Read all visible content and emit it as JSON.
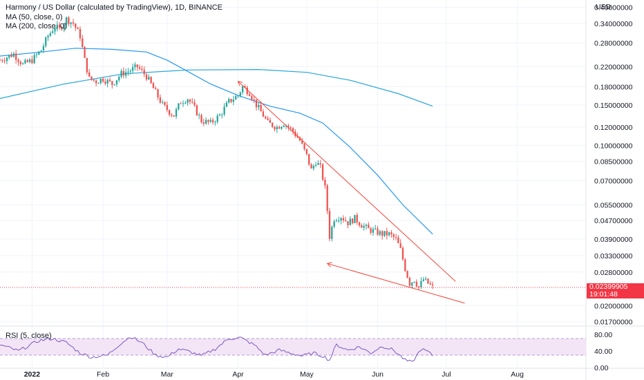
{
  "legend": {
    "title": "Harmony / US Dollar (calculated by TradingView), 1D, BINANCE",
    "ma50": "MA (50, close, 0)",
    "ma200": "MA (200, close, 0)",
    "rsi": "RSI (5, close)"
  },
  "price_label": {
    "value": "0.02399905",
    "time": "19:01:48"
  },
  "colors": {
    "up": "#26a69a",
    "down": "#ef5350",
    "ma50": "#2196f3",
    "ma200": "#26a5d9",
    "rsi_line": "#7e57c2",
    "rsi_band": "#f3e5f5",
    "trend": "#f44336",
    "price_line": "#f23645"
  },
  "chart_data": {
    "type": "candlestick",
    "title": "Harmony / US Dollar (calculated by TradingView), 1D, BINANCE",
    "y_unit": "USD",
    "y_scale": "log",
    "y_ticks": [
      0.4,
      0.34,
      0.28,
      0.22,
      0.18,
      0.15,
      0.12,
      0.1,
      0.085,
      0.07,
      0.055,
      0.047,
      0.039,
      0.033,
      0.028,
      0.02,
      0.017
    ],
    "x_range": [
      "2021-12-18",
      "2022-08-31"
    ],
    "x_ticks": [
      {
        "label": "2022",
        "date": "2022-01-01"
      },
      {
        "label": "Feb",
        "date": "2022-02-01"
      },
      {
        "label": "Mar",
        "date": "2022-03-01"
      },
      {
        "label": "Apr",
        "date": "2022-04-01"
      },
      {
        "label": "May",
        "date": "2022-05-01"
      },
      {
        "label": "Jun",
        "date": "2022-06-01"
      },
      {
        "label": "Jul",
        "date": "2022-07-01"
      },
      {
        "label": "Aug",
        "date": "2022-08-01"
      }
    ],
    "last_price": 0.02399905,
    "close_path": [
      [
        "2021-12-18",
        0.235
      ],
      [
        "2021-12-24",
        0.25
      ],
      [
        "2021-12-28",
        0.225
      ],
      [
        "2022-01-01",
        0.235
      ],
      [
        "2022-01-05",
        0.26
      ],
      [
        "2022-01-08",
        0.3
      ],
      [
        "2022-01-11",
        0.33
      ],
      [
        "2022-01-13",
        0.32
      ],
      [
        "2022-01-16",
        0.355
      ],
      [
        "2022-01-19",
        0.34
      ],
      [
        "2022-01-22",
        0.3
      ],
      [
        "2022-01-24",
        0.235
      ],
      [
        "2022-01-26",
        0.195
      ],
      [
        "2022-01-29",
        0.19
      ],
      [
        "2022-02-01",
        0.195
      ],
      [
        "2022-02-05",
        0.185
      ],
      [
        "2022-02-09",
        0.205
      ],
      [
        "2022-02-12",
        0.21
      ],
      [
        "2022-02-16",
        0.22
      ],
      [
        "2022-02-20",
        0.2
      ],
      [
        "2022-02-24",
        0.17
      ],
      [
        "2022-02-27",
        0.15
      ],
      [
        "2022-03-02",
        0.14
      ],
      [
        "2022-03-04",
        0.135
      ],
      [
        "2022-03-07",
        0.155
      ],
      [
        "2022-03-10",
        0.16
      ],
      [
        "2022-03-13",
        0.145
      ],
      [
        "2022-03-16",
        0.128
      ],
      [
        "2022-03-20",
        0.125
      ],
      [
        "2022-03-24",
        0.135
      ],
      [
        "2022-03-28",
        0.155
      ],
      [
        "2022-04-01",
        0.165
      ],
      [
        "2022-04-03",
        0.18
      ],
      [
        "2022-04-06",
        0.17
      ],
      [
        "2022-04-09",
        0.15
      ],
      [
        "2022-04-12",
        0.135
      ],
      [
        "2022-04-14",
        0.125
      ],
      [
        "2022-04-18",
        0.12
      ],
      [
        "2022-04-21",
        0.125
      ],
      [
        "2022-04-23",
        0.12
      ],
      [
        "2022-04-25",
        0.115
      ],
      [
        "2022-04-28",
        0.105
      ],
      [
        "2022-05-01",
        0.09
      ],
      [
        "2022-05-03",
        0.078
      ],
      [
        "2022-05-05",
        0.085
      ],
      [
        "2022-05-07",
        0.08
      ],
      [
        "2022-05-09",
        0.065
      ],
      [
        "2022-05-10",
        0.052
      ],
      [
        "2022-05-11",
        0.04
      ],
      [
        "2022-05-13",
        0.048
      ],
      [
        "2022-05-16",
        0.049
      ],
      [
        "2022-05-19",
        0.046
      ],
      [
        "2022-05-22",
        0.048
      ],
      [
        "2022-05-25",
        0.045
      ],
      [
        "2022-05-28",
        0.043
      ],
      [
        "2022-05-31",
        0.042
      ],
      [
        "2022-06-03",
        0.041
      ],
      [
        "2022-06-06",
        0.041
      ],
      [
        "2022-06-09",
        0.039
      ],
      [
        "2022-06-11",
        0.035
      ],
      [
        "2022-06-13",
        0.029
      ],
      [
        "2022-06-15",
        0.025
      ],
      [
        "2022-06-17",
        0.026
      ],
      [
        "2022-06-19",
        0.024
      ],
      [
        "2022-06-21",
        0.026
      ],
      [
        "2022-06-23",
        0.025
      ],
      [
        "2022-06-25",
        0.024
      ]
    ],
    "series": [
      {
        "name": "MA (50, close, 0)",
        "points": [
          [
            "2021-12-18",
            0.245
          ],
          [
            "2022-01-05",
            0.255
          ],
          [
            "2022-01-20",
            0.265
          ],
          [
            "2022-02-05",
            0.262
          ],
          [
            "2022-02-20",
            0.255
          ],
          [
            "2022-03-01",
            0.235
          ],
          [
            "2022-03-10",
            0.21
          ],
          [
            "2022-03-20",
            0.185
          ],
          [
            "2022-04-01",
            0.165
          ],
          [
            "2022-04-15",
            0.148
          ],
          [
            "2022-04-28",
            0.138
          ],
          [
            "2022-05-08",
            0.125
          ],
          [
            "2022-05-20",
            0.098
          ],
          [
            "2022-06-01",
            0.074
          ],
          [
            "2022-06-12",
            0.055
          ],
          [
            "2022-06-25",
            0.041
          ]
        ]
      },
      {
        "name": "MA (200, close, 0)",
        "points": [
          [
            "2021-12-18",
            0.16
          ],
          [
            "2022-01-15",
            0.185
          ],
          [
            "2022-02-10",
            0.205
          ],
          [
            "2022-03-10",
            0.213
          ],
          [
            "2022-04-10",
            0.214
          ],
          [
            "2022-05-01",
            0.208
          ],
          [
            "2022-05-20",
            0.192
          ],
          [
            "2022-06-10",
            0.168
          ],
          [
            "2022-06-25",
            0.148
          ]
        ]
      }
    ],
    "rsi": {
      "name": "RSI (5, close)",
      "y_ticks": [
        80,
        40,
        0
      ],
      "band": [
        30,
        70
      ],
      "points": [
        [
          "2021-12-18",
          55
        ],
        [
          "2021-12-26",
          40
        ],
        [
          "2022-01-04",
          65
        ],
        [
          "2022-01-10",
          70
        ],
        [
          "2022-01-16",
          60
        ],
        [
          "2022-01-22",
          35
        ],
        [
          "2022-01-27",
          25
        ],
        [
          "2022-02-03",
          30
        ],
        [
          "2022-02-08",
          55
        ],
        [
          "2022-02-13",
          75
        ],
        [
          "2022-02-18",
          60
        ],
        [
          "2022-02-24",
          30
        ],
        [
          "2022-03-01",
          25
        ],
        [
          "2022-03-06",
          45
        ],
        [
          "2022-03-11",
          38
        ],
        [
          "2022-03-16",
          28
        ],
        [
          "2022-03-22",
          45
        ],
        [
          "2022-03-28",
          70
        ],
        [
          "2022-04-02",
          72
        ],
        [
          "2022-04-08",
          55
        ],
        [
          "2022-04-13",
          30
        ],
        [
          "2022-04-19",
          42
        ],
        [
          "2022-04-24",
          35
        ],
        [
          "2022-04-29",
          28
        ],
        [
          "2022-05-04",
          35
        ],
        [
          "2022-05-08",
          28
        ],
        [
          "2022-05-11",
          18
        ],
        [
          "2022-05-14",
          55
        ],
        [
          "2022-05-19",
          42
        ],
        [
          "2022-05-24",
          50
        ],
        [
          "2022-05-29",
          35
        ],
        [
          "2022-06-03",
          52
        ],
        [
          "2022-06-08",
          42
        ],
        [
          "2022-06-13",
          18
        ],
        [
          "2022-06-16",
          12
        ],
        [
          "2022-06-20",
          45
        ],
        [
          "2022-06-23",
          38
        ],
        [
          "2022-06-25",
          28
        ]
      ]
    },
    "trend_lines": [
      {
        "from": [
          "2022-04-01",
          0.19
        ],
        "to": [
          "2022-07-05",
          0.0255
        ]
      },
      {
        "from": [
          "2022-05-10",
          0.0305
        ],
        "to": [
          "2022-07-09",
          0.0205
        ]
      }
    ]
  }
}
